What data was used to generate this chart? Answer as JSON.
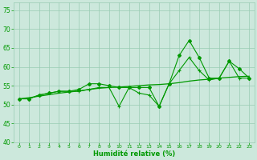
{
  "x": [
    0,
    1,
    2,
    3,
    4,
    5,
    6,
    7,
    8,
    9,
    10,
    11,
    12,
    13,
    14,
    15,
    16,
    17,
    18,
    19,
    20,
    21,
    22,
    23
  ],
  "line_jagged1": [
    51.5,
    51.5,
    52.5,
    53.0,
    53.5,
    53.5,
    54.0,
    55.5,
    55.5,
    55.0,
    54.5,
    54.5,
    54.5,
    54.5,
    49.5,
    55.5,
    63.0,
    67.0,
    62.5,
    57.0,
    57.0,
    61.5,
    59.5,
    57.0
  ],
  "line_jagged2": [
    51.5,
    51.5,
    52.5,
    53.0,
    53.5,
    53.5,
    53.5,
    54.0,
    54.5,
    54.5,
    49.5,
    54.5,
    53.0,
    52.5,
    49.5,
    55.5,
    59.0,
    62.5,
    59.0,
    56.5,
    57.0,
    61.5,
    57.0,
    57.0
  ],
  "line_smooth": [
    51.5,
    51.8,
    52.2,
    52.6,
    53.0,
    53.3,
    53.6,
    54.0,
    54.3,
    54.5,
    54.6,
    54.8,
    55.0,
    55.2,
    55.3,
    55.5,
    55.8,
    56.2,
    56.5,
    56.7,
    57.0,
    57.2,
    57.4,
    57.5
  ],
  "bg_color": "#cce8dc",
  "grid_color": "#99ccb3",
  "line_color": "#009900",
  "xlabel": "Humidité relative (%)",
  "ylim": [
    40,
    77
  ],
  "xlim": [
    -0.5,
    23.5
  ],
  "yticks": [
    40,
    45,
    50,
    55,
    60,
    65,
    70,
    75
  ],
  "xtick_labels": [
    "0",
    "1",
    "2",
    "3",
    "4",
    "5",
    "6",
    "7",
    "8",
    "9",
    "10",
    "11",
    "12",
    "13",
    "14",
    "15",
    "16",
    "17",
    "18",
    "19",
    "20",
    "21",
    "22",
    "23"
  ],
  "font_color": "#009900"
}
